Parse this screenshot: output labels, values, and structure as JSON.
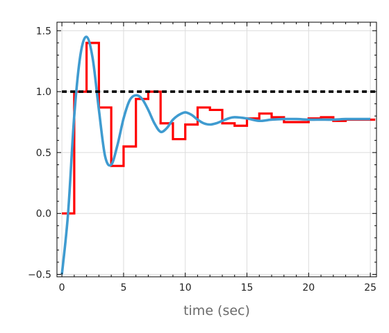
{
  "chart_data": {
    "type": "line",
    "title": "",
    "xlabel": "time (sec)",
    "ylabel": "",
    "xlim": [
      -0.4,
      25.5
    ],
    "ylim": [
      -0.52,
      1.57
    ],
    "xticks": [
      0,
      5,
      10,
      15,
      20,
      25
    ],
    "xtick_labels": [
      "0",
      "5",
      "10",
      "15",
      "20",
      "25"
    ],
    "yticks": [
      -0.5,
      0.0,
      0.5,
      1.0,
      1.5
    ],
    "ytick_labels": [
      "−0.5",
      "0.0",
      "0.5",
      "1.0",
      "1.5"
    ],
    "grid": true,
    "legend": "none",
    "series": [
      {
        "style": "step",
        "color": "#ff0000",
        "x": [
          0,
          1,
          2,
          3,
          4,
          5,
          6,
          7,
          8,
          9,
          10,
          11,
          12,
          13,
          14,
          15,
          16,
          17,
          18,
          19,
          20,
          21,
          22,
          23,
          24,
          25
        ],
        "values": [
          0.0,
          1.0,
          1.4,
          0.87,
          0.39,
          0.55,
          0.94,
          1.0,
          0.74,
          0.61,
          0.73,
          0.87,
          0.85,
          0.74,
          0.72,
          0.78,
          0.82,
          0.79,
          0.75,
          0.75,
          0.78,
          0.79,
          0.76,
          0.77,
          0.77,
          0.77
        ]
      },
      {
        "style": "line",
        "color": "#3f9bd0",
        "x": [
          0,
          0.5,
          1,
          1.5,
          2,
          2.5,
          3,
          3.5,
          4,
          4.5,
          5,
          5.5,
          6,
          6.5,
          7,
          7.5,
          8,
          8.5,
          9,
          9.5,
          10,
          10.5,
          11,
          11.5,
          12,
          12.5,
          13,
          13.5,
          14,
          15,
          16,
          17,
          18,
          19,
          20,
          21,
          22,
          23,
          24,
          25
        ],
        "values": [
          -0.5,
          0.0,
          0.8,
          1.3,
          1.45,
          1.27,
          0.85,
          0.47,
          0.4,
          0.56,
          0.78,
          0.93,
          0.97,
          0.94,
          0.85,
          0.74,
          0.67,
          0.7,
          0.77,
          0.81,
          0.83,
          0.81,
          0.77,
          0.74,
          0.73,
          0.74,
          0.76,
          0.78,
          0.79,
          0.78,
          0.76,
          0.77,
          0.775,
          0.775,
          0.77,
          0.77,
          0.77,
          0.775,
          0.775,
          0.775
        ]
      },
      {
        "style": "dashed",
        "color": "#000000",
        "x": [
          0,
          25.4
        ],
        "values": [
          1.0,
          1.0
        ]
      }
    ]
  }
}
